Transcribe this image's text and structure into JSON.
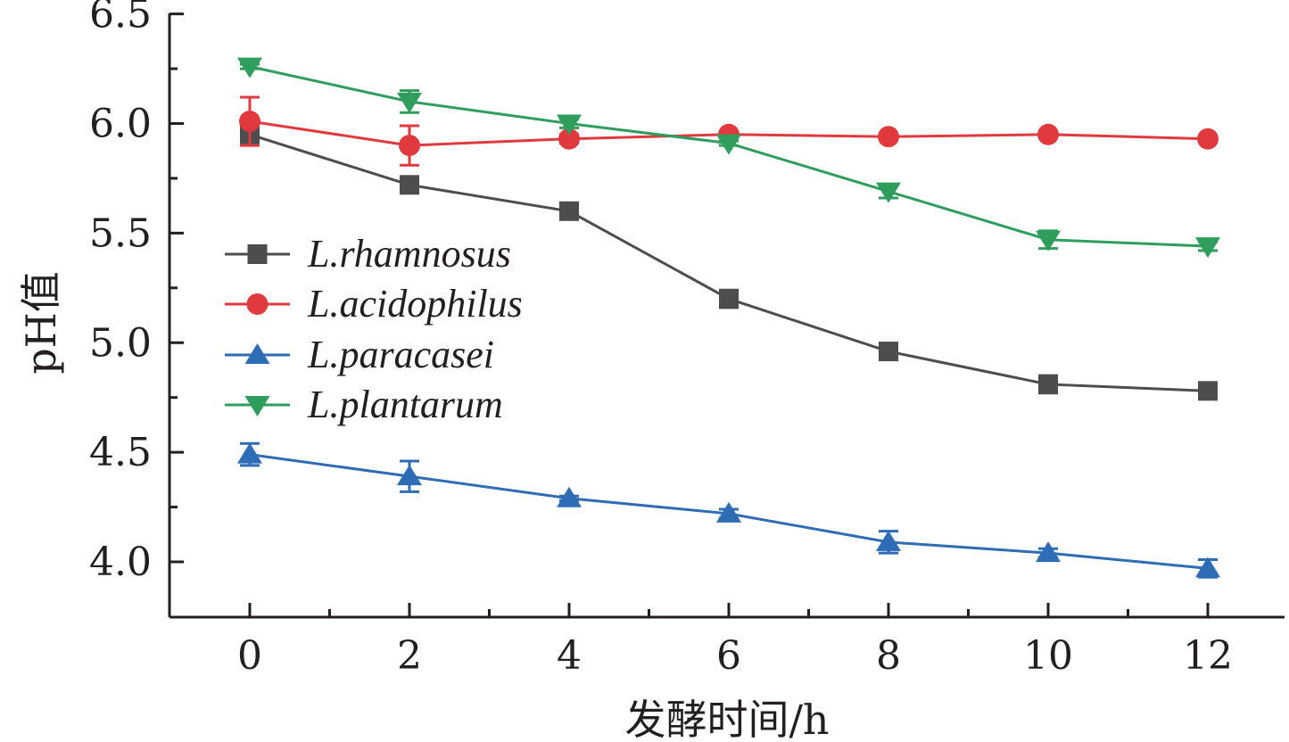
{
  "chart_data": {
    "type": "line",
    "xlabel": "发酵时间/h",
    "ylabel": "pH值",
    "x": [
      0,
      2,
      4,
      6,
      8,
      10,
      12
    ],
    "x_ticks": [
      "0",
      "2",
      "4",
      "6",
      "8",
      "10",
      "12"
    ],
    "y_ticks": [
      "4.0",
      "4.5",
      "5.0",
      "5.5",
      "6.0",
      "6.5"
    ],
    "xlim": [
      -1,
      13
    ],
    "ylim": [
      3.75,
      6.5
    ],
    "grid": false,
    "legend_position": "middle-left",
    "series": [
      {
        "name": "L.rhamnosus",
        "color": "#4d4d4f",
        "marker": "square",
        "values": [
          5.95,
          5.72,
          5.6,
          5.2,
          4.96,
          4.81,
          4.78
        ],
        "errors": [
          0.03,
          0.01,
          0.01,
          0.04,
          0.01,
          0.04,
          0.01
        ]
      },
      {
        "name": "L.acidophilus",
        "color": "#e03a3e",
        "marker": "circle",
        "values": [
          6.01,
          5.9,
          5.93,
          5.95,
          5.94,
          5.95,
          5.93
        ],
        "errors": [
          0.11,
          0.09,
          0.02,
          0.01,
          0.01,
          0.01,
          0.01
        ]
      },
      {
        "name": "L.paracasei",
        "color": "#2e6cb5",
        "marker": "triangle-up",
        "values": [
          4.49,
          4.39,
          4.29,
          4.22,
          4.09,
          4.04,
          3.97
        ],
        "errors": [
          0.05,
          0.07,
          0.01,
          0.02,
          0.05,
          0.02,
          0.04
        ]
      },
      {
        "name": "L.plantarum",
        "color": "#2f9e5c",
        "marker": "triangle-down",
        "values": [
          6.26,
          6.1,
          6.0,
          5.91,
          5.69,
          5.47,
          5.44
        ],
        "errors": [
          0.01,
          0.05,
          0.02,
          0.01,
          0.03,
          0.04,
          0.02
        ]
      }
    ]
  }
}
